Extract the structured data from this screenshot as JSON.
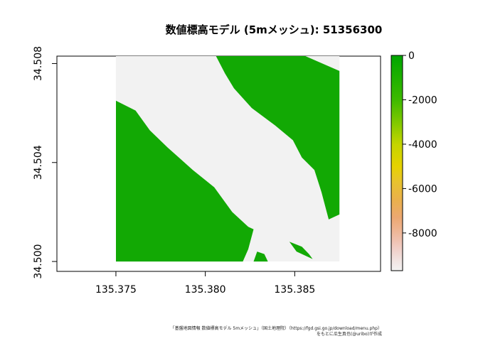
{
  "chart_data": {
    "type": "heatmap",
    "title": "数値標高モデル (5mメッシュ): 51356300",
    "xlim": [
      135.3717,
      135.3898
    ],
    "ylim": [
      34.4996,
      34.5083
    ],
    "x_ticks": [
      "135.375",
      "135.380",
      "135.385"
    ],
    "x_tick_values": [
      135.375,
      135.38,
      135.385
    ],
    "y_ticks": [
      "34.500",
      "34.504",
      "34.508"
    ],
    "y_tick_values": [
      34.5,
      34.504,
      34.508
    ],
    "raster_extent": {
      "x": [
        135.375,
        135.3875
      ],
      "y": [
        34.5,
        34.5083
      ]
    },
    "land_value": 0,
    "nodata_color": "#f2f2f2",
    "land_color": "#12a904",
    "land_regions": [
      {
        "name": "northeast land",
        "points": [
          [
            135.3806,
            34.5083
          ],
          [
            135.3856,
            34.5083
          ],
          [
            135.3875,
            34.5077
          ],
          [
            135.3875,
            34.5019
          ],
          [
            135.3869,
            34.5017
          ],
          [
            135.3865,
            34.5028
          ],
          [
            135.3861,
            34.5037
          ],
          [
            135.3854,
            34.5042
          ],
          [
            135.3849,
            34.5049
          ],
          [
            135.3839,
            34.5055
          ],
          [
            135.3826,
            34.5062
          ],
          [
            135.3816,
            34.507
          ],
          [
            135.3811,
            34.5076
          ]
        ]
      },
      {
        "name": "southwest land",
        "points": [
          [
            135.375,
            34.5065
          ],
          [
            135.3761,
            34.5061
          ],
          [
            135.3769,
            34.5053
          ],
          [
            135.3779,
            34.5046
          ],
          [
            135.3793,
            34.5037
          ],
          [
            135.3805,
            34.503
          ],
          [
            135.3815,
            34.502
          ],
          [
            135.3824,
            34.5014
          ],
          [
            135.3827,
            34.5013
          ],
          [
            135.3824,
            34.5005
          ],
          [
            135.3821,
            34.5
          ]
        ],
        "closed_to": [
          [
            135.375,
            34.5
          ]
        ]
      },
      {
        "name": "south islet west",
        "points": [
          [
            135.3827,
            34.5
          ],
          [
            135.3829,
            34.5004
          ],
          [
            135.3833,
            34.5003
          ],
          [
            135.3835,
            34.5
          ]
        ]
      },
      {
        "name": "south islet east",
        "points": [
          [
            135.3847,
            34.5008
          ],
          [
            135.3854,
            34.5006
          ],
          [
            135.3858,
            34.5003
          ],
          [
            135.386,
            34.5001
          ],
          [
            135.3851,
            34.5004
          ]
        ]
      }
    ],
    "colorbar": {
      "ticks": [
        "0",
        "-2000",
        "-4000",
        "-6000",
        "-8000"
      ],
      "tick_values": [
        0,
        -2000,
        -4000,
        -6000,
        -8000
      ],
      "range": [
        0,
        -9700
      ],
      "stops": [
        {
          "value": 0,
          "color": "#00a600"
        },
        {
          "value": -1000,
          "color": "#1eb000"
        },
        {
          "value": -2000,
          "color": "#3eba00"
        },
        {
          "value": -3000,
          "color": "#7ec800"
        },
        {
          "value": -4000,
          "color": "#c4d500"
        },
        {
          "value": -5000,
          "color": "#e6d200"
        },
        {
          "value": -5700,
          "color": "#e8c32e"
        },
        {
          "value": -6500,
          "color": "#eab14b"
        },
        {
          "value": -7300,
          "color": "#eca871"
        },
        {
          "value": -7800,
          "color": "#eeb38e"
        },
        {
          "value": -8300,
          "color": "#efc0ae"
        },
        {
          "value": -8800,
          "color": "#f0d2cc"
        },
        {
          "value": -9300,
          "color": "#f1e6e4"
        },
        {
          "value": -9700,
          "color": "#f2f2f2"
        }
      ]
    }
  },
  "attribution": {
    "line1": "「基盤地図情報 数値標高モデル 5mメッシュ」（国土地理院）（https://fgd.gsi.go.jp/download/menu.php）",
    "line2": "をもとに瓜生真也(@uribo)が作成"
  }
}
